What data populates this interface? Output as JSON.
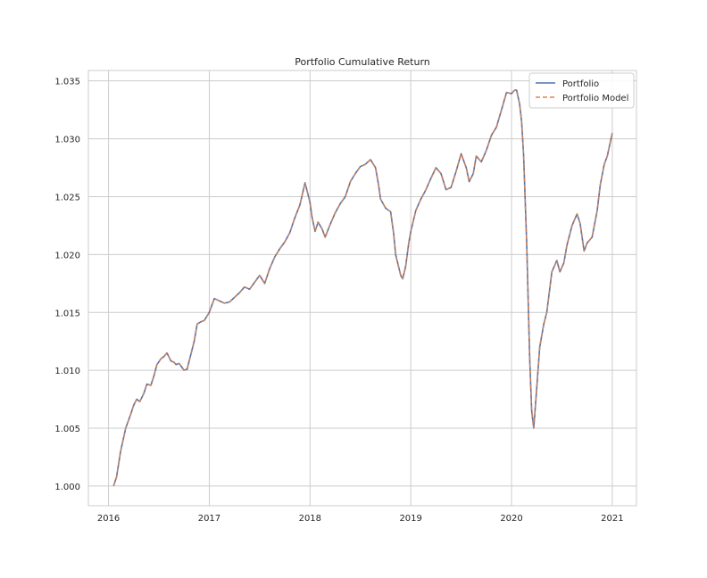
{
  "chart_data": {
    "type": "line",
    "title": "Portfolio Cumulative Return",
    "xlabel": "",
    "ylabel": "",
    "grid": true,
    "legend_position": "top-right",
    "x_ticks": [
      2016,
      2017,
      2018,
      2019,
      2020,
      2021
    ],
    "y_ticks": [
      1.0,
      1.005,
      1.01,
      1.015,
      1.02,
      1.025,
      1.03,
      1.035
    ],
    "xlim": [
      2015.8,
      2021.24
    ],
    "ylim": [
      0.9983,
      1.0359
    ],
    "series": [
      {
        "name": "Portfolio",
        "color": "#4c72b0",
        "style": "solid",
        "x": [
          2016.05,
          2016.08,
          2016.12,
          2016.17,
          2016.22,
          2016.25,
          2016.28,
          2016.31,
          2016.35,
          2016.38,
          2016.42,
          2016.45,
          2016.48,
          2016.52,
          2016.55,
          2016.58,
          2016.62,
          2016.65,
          2016.67,
          2016.7,
          2016.75,
          2016.78,
          2016.8,
          2016.85,
          2016.88,
          2016.92,
          2016.95,
          2017.0,
          2017.05,
          2017.1,
          2017.15,
          2017.2,
          2017.25,
          2017.3,
          2017.35,
          2017.4,
          2017.45,
          2017.5,
          2017.55,
          2017.6,
          2017.65,
          2017.7,
          2017.75,
          2017.8,
          2017.85,
          2017.9,
          2017.95,
          2018.0,
          2018.02,
          2018.05,
          2018.08,
          2018.12,
          2018.15,
          2018.2,
          2018.25,
          2018.3,
          2018.35,
          2018.4,
          2018.45,
          2018.5,
          2018.55,
          2018.6,
          2018.65,
          2018.68,
          2018.7,
          2018.75,
          2018.8,
          2018.83,
          2018.85,
          2018.9,
          2018.92,
          2018.95,
          2018.98,
          2019.0,
          2019.05,
          2019.1,
          2019.15,
          2019.2,
          2019.25,
          2019.3,
          2019.35,
          2019.4,
          2019.45,
          2019.5,
          2019.55,
          2019.58,
          2019.62,
          2019.65,
          2019.7,
          2019.75,
          2019.8,
          2019.85,
          2019.9,
          2019.95,
          2020.0,
          2020.03,
          2020.05,
          2020.08,
          2020.1,
          2020.12,
          2020.15,
          2020.18,
          2020.2,
          2020.22,
          2020.25,
          2020.28,
          2020.32,
          2020.35,
          2020.4,
          2020.45,
          2020.48,
          2020.52,
          2020.55,
          2020.6,
          2020.65,
          2020.68,
          2020.7,
          2020.72,
          2020.75,
          2020.78,
          2020.8,
          2020.85,
          2020.88,
          2020.92,
          2020.95,
          2021.0
        ],
        "y": [
          1.0,
          1.0008,
          1.003,
          1.005,
          1.0062,
          1.007,
          1.0075,
          1.0073,
          1.008,
          1.0088,
          1.0087,
          1.0095,
          1.0105,
          1.011,
          1.0112,
          1.0115,
          1.0108,
          1.0107,
          1.0105,
          1.0106,
          1.01,
          1.0101,
          1.0108,
          1.0125,
          1.014,
          1.0142,
          1.0143,
          1.015,
          1.0162,
          1.016,
          1.0158,
          1.0159,
          1.0163,
          1.0167,
          1.0172,
          1.017,
          1.0176,
          1.0182,
          1.0175,
          1.0188,
          1.0198,
          1.0205,
          1.0211,
          1.0219,
          1.0232,
          1.0243,
          1.0262,
          1.0245,
          1.0232,
          1.022,
          1.0228,
          1.0222,
          1.0215,
          1.0226,
          1.0236,
          1.0244,
          1.025,
          1.0263,
          1.027,
          1.0276,
          1.0278,
          1.0282,
          1.0275,
          1.026,
          1.0248,
          1.024,
          1.0237,
          1.0218,
          1.02,
          1.0182,
          1.0179,
          1.019,
          1.021,
          1.022,
          1.0238,
          1.0248,
          1.0256,
          1.0266,
          1.0275,
          1.027,
          1.0256,
          1.0258,
          1.0272,
          1.0287,
          1.0275,
          1.0263,
          1.027,
          1.0285,
          1.028,
          1.029,
          1.0303,
          1.031,
          1.0325,
          1.034,
          1.0339,
          1.0342,
          1.0342,
          1.033,
          1.0315,
          1.0285,
          1.021,
          1.011,
          1.0065,
          1.005,
          1.0085,
          1.012,
          1.014,
          1.015,
          1.0185,
          1.0195,
          1.0185,
          1.0193,
          1.0208,
          1.0225,
          1.0235,
          1.0227,
          1.0215,
          1.0203,
          1.021,
          1.0213,
          1.0215,
          1.0238,
          1.026,
          1.0278,
          1.0285,
          1.0305
        ]
      },
      {
        "name": "Portfolio Model",
        "color": "#dd8452",
        "style": "dashed",
        "same_as": "Portfolio"
      }
    ]
  }
}
